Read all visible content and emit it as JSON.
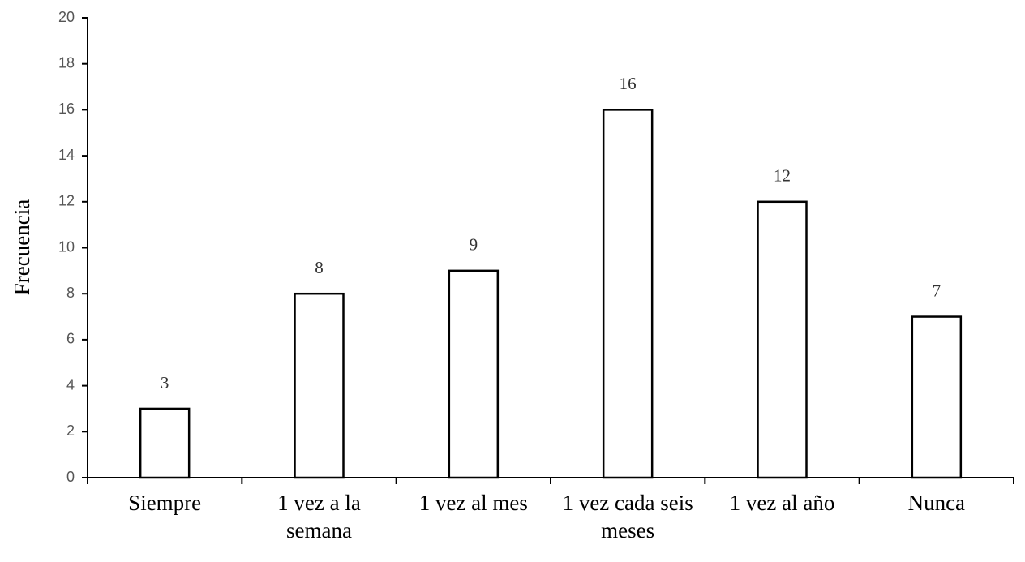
{
  "chart_data": {
    "type": "bar",
    "y_label": "Frecuencia",
    "categories": [
      "Siempre",
      "1 vez a la semana",
      "1 vez al mes",
      "1 vez cada seis meses",
      "1 vez al año",
      "Nunca"
    ],
    "values": [
      3,
      8,
      9,
      16,
      12,
      7
    ],
    "color": "#ffffff",
    "ylim": [
      0,
      20
    ],
    "yticks": [
      0,
      2,
      4,
      6,
      8,
      10,
      12,
      14,
      16,
      18,
      20
    ],
    "grid": false
  }
}
